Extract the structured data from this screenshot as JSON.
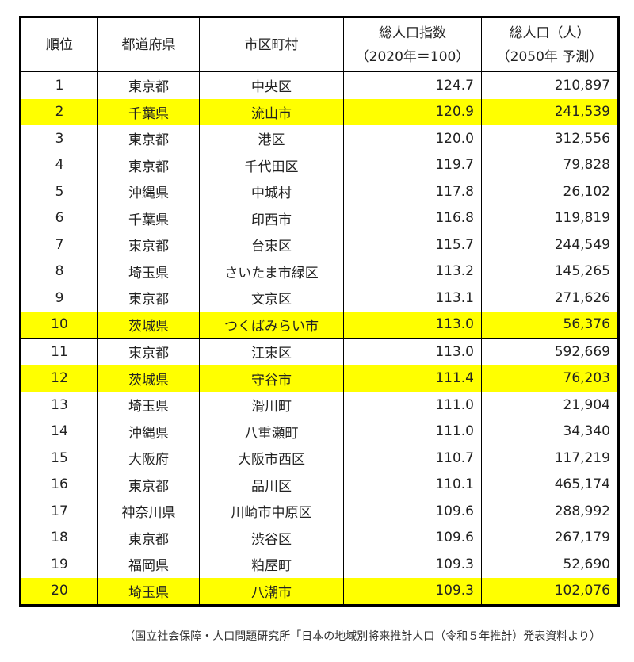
{
  "header": {
    "rank": "順位",
    "pref": "都道府県",
    "city": "市区町村",
    "index_line1": "総人口指数",
    "index_line2": "（2020年＝100）",
    "pop_line1": "総人口（人）",
    "pop_line2": "（2050年 予測）"
  },
  "rows": [
    {
      "rank": "1",
      "pref": "東京都",
      "city": "中央区",
      "index": "124.7",
      "pop": "210,897",
      "highlight": false
    },
    {
      "rank": "2",
      "pref": "千葉県",
      "city": "流山市",
      "index": "120.9",
      "pop": "241,539",
      "highlight": true
    },
    {
      "rank": "3",
      "pref": "東京都",
      "city": "港区",
      "index": "120.0",
      "pop": "312,556",
      "highlight": false
    },
    {
      "rank": "4",
      "pref": "東京都",
      "city": "千代田区",
      "index": "119.7",
      "pop": "79,828",
      "highlight": false
    },
    {
      "rank": "5",
      "pref": "沖縄県",
      "city": "中城村",
      "index": "117.8",
      "pop": "26,102",
      "highlight": false
    },
    {
      "rank": "6",
      "pref": "千葉県",
      "city": "印西市",
      "index": "116.8",
      "pop": "119,819",
      "highlight": false
    },
    {
      "rank": "7",
      "pref": "東京都",
      "city": "台東区",
      "index": "115.7",
      "pop": "244,549",
      "highlight": false
    },
    {
      "rank": "8",
      "pref": "埼玉県",
      "city": "さいたま市緑区",
      "index": "113.2",
      "pop": "145,265",
      "highlight": false
    },
    {
      "rank": "9",
      "pref": "東京都",
      "city": "文京区",
      "index": "113.1",
      "pop": "271,626",
      "highlight": false
    },
    {
      "rank": "10",
      "pref": "茨城県",
      "city": "つくばみらい市",
      "index": "113.0",
      "pop": "56,376",
      "highlight": true
    },
    {
      "rank": "11",
      "pref": "東京都",
      "city": "江東区",
      "index": "113.0",
      "pop": "592,669",
      "highlight": false
    },
    {
      "rank": "12",
      "pref": "茨城県",
      "city": "守谷市",
      "index": "111.4",
      "pop": "76,203",
      "highlight": true
    },
    {
      "rank": "13",
      "pref": "埼玉県",
      "city": "滑川町",
      "index": "111.0",
      "pop": "21,904",
      "highlight": false
    },
    {
      "rank": "14",
      "pref": "沖縄県",
      "city": "八重瀬町",
      "index": "111.0",
      "pop": "34,340",
      "highlight": false
    },
    {
      "rank": "15",
      "pref": "大阪府",
      "city": "大阪市西区",
      "index": "110.7",
      "pop": "117,219",
      "highlight": false
    },
    {
      "rank": "16",
      "pref": "東京都",
      "city": "品川区",
      "index": "110.1",
      "pop": "465,174",
      "highlight": false
    },
    {
      "rank": "17",
      "pref": "神奈川県",
      "city": "川崎市中原区",
      "index": "109.6",
      "pop": "288,992",
      "highlight": false
    },
    {
      "rank": "18",
      "pref": "東京都",
      "city": "渋谷区",
      "index": "109.6",
      "pop": "267,179",
      "highlight": false
    },
    {
      "rank": "19",
      "pref": "福岡県",
      "city": "粕屋町",
      "index": "109.3",
      "pop": "52,690",
      "highlight": false
    },
    {
      "rank": "20",
      "pref": "埼玉県",
      "city": "八潮市",
      "index": "109.3",
      "pop": "102,076",
      "highlight": true
    }
  ],
  "highlight_color": "#ffff00",
  "source_note": "（国立社会保障・人口問題研究所「日本の地域別将来推計人口（令和５年推計）発表資料より）"
}
